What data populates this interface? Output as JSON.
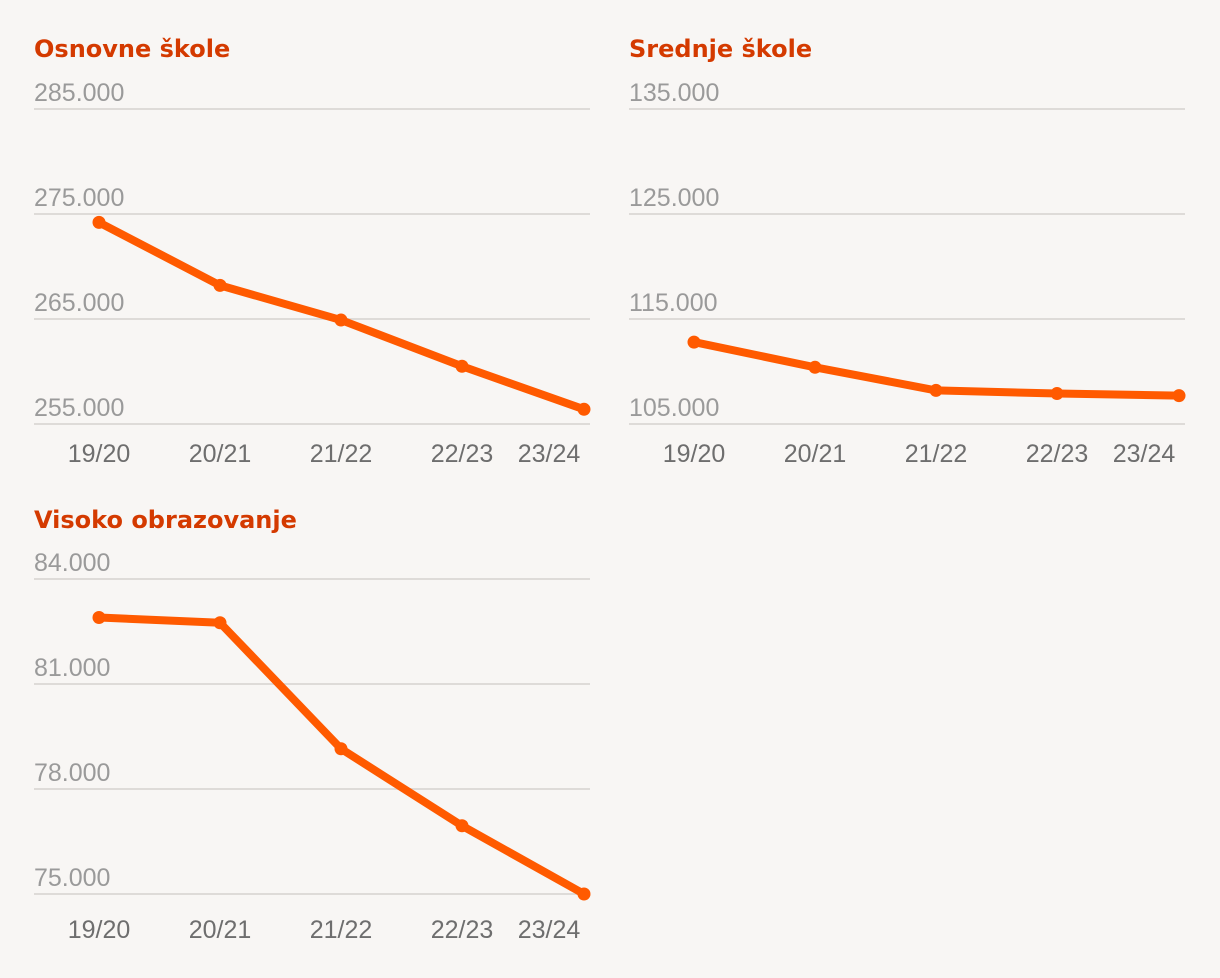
{
  "colors": {
    "title": "#d43a00",
    "series": "#ff5a00",
    "grid": "#dedbd8",
    "ytick": "#9a9a9a",
    "xtick": "#6e6e6e"
  },
  "chart_data": [
    {
      "type": "line",
      "title": "Osnovne škole",
      "categories": [
        "19/20",
        "20/21",
        "21/22",
        "22/23",
        "23/24"
      ],
      "values": [
        274200,
        268200,
        264900,
        260500,
        256400
      ],
      "ylim": [
        255000,
        285000
      ],
      "yticks": [
        285000,
        275000,
        265000,
        255000
      ],
      "ytick_labels": [
        "285.000",
        "275.000",
        "265.000",
        "255.000"
      ],
      "grid": true
    },
    {
      "type": "line",
      "title": "Srednje škole",
      "categories": [
        "19/20",
        "20/21",
        "21/22",
        "22/23",
        "23/24"
      ],
      "values": [
        112800,
        110400,
        108200,
        107900,
        107700
      ],
      "ylim": [
        105000,
        135000
      ],
      "yticks": [
        135000,
        125000,
        115000,
        105000
      ],
      "ytick_labels": [
        "135.000",
        "125.000",
        "115.000",
        "105.000"
      ],
      "grid": true
    },
    {
      "type": "line",
      "title": "Visoko obrazovanje",
      "categories": [
        "19/20",
        "20/21",
        "21/22",
        "22/23",
        "23/24"
      ],
      "values": [
        82900,
        82750,
        79150,
        76950,
        75000
      ],
      "ylim": [
        75000,
        84000
      ],
      "yticks": [
        84000,
        81000,
        78000,
        75000
      ],
      "ytick_labels": [
        "84.000",
        "81.000",
        "78.000",
        "75.000"
      ],
      "grid": true
    }
  ]
}
